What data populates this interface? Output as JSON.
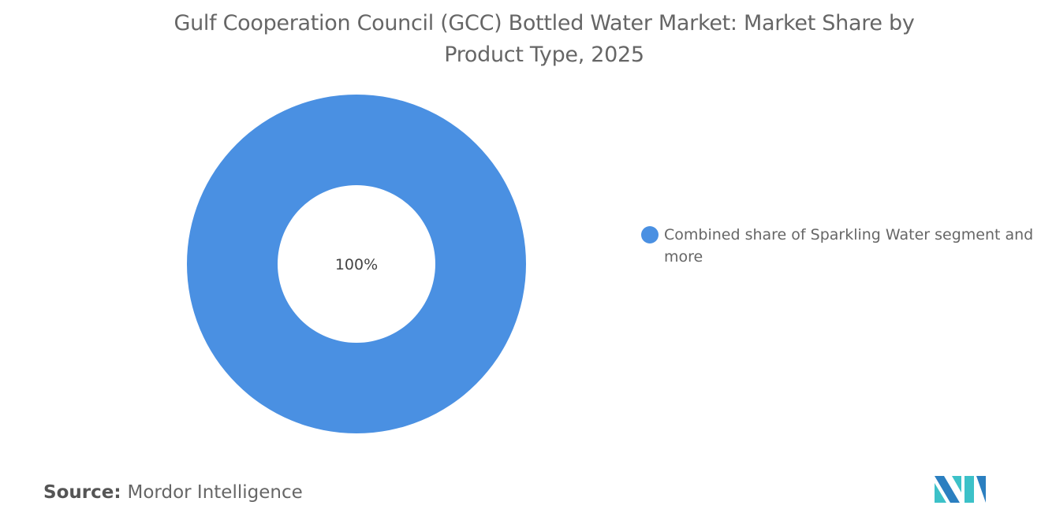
{
  "title_lines": [
    "Gulf Cooperation Council (GCC) Bottled Water Market: Market Share by",
    "Product Type, 2025"
  ],
  "chart_data": {
    "type": "pie",
    "subtype": "donut",
    "title": "Gulf Cooperation Council (GCC) Bottled Water Market: Market Share by Product Type, 2025",
    "categories": [
      "Combined share of Sparkling Water segment and more"
    ],
    "values": [
      100
    ],
    "data_labels": [
      "100%"
    ],
    "colors": [
      "#4a90e2"
    ],
    "legend_position": "right"
  },
  "source": {
    "label": "Source:",
    "value": "Mordor Intelligence"
  },
  "logo": {
    "name": "Mordor Intelligence",
    "colors": [
      "#2b7fc0",
      "#3cc1c8"
    ]
  }
}
